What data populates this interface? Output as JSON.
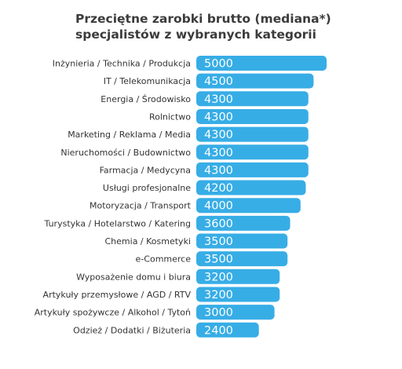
{
  "chart_data": {
    "type": "bar",
    "orientation": "horizontal",
    "title_lines": [
      "Przeciętne zarobki brutto (mediana*)",
      "specjalistów z wybranych kategorii"
    ],
    "categories": [
      "Inżynieria / Technika / Produkcja",
      "IT / Telekomunikacja",
      "Energia / Środowisko",
      "Rolnictwo",
      "Marketing / Reklama / Media",
      "Nieruchomości / Budownictwo",
      "Farmacja / Medycyna",
      "Usługi profesjonalne",
      "Motoryzacja / Transport",
      "Turystyka / Hotelarstwo / Katering",
      "Chemia / Kosmetyki",
      "e-Commerce",
      "Wyposażenie domu i biura",
      "Artykuły przemysłowe / AGD / RTV",
      "Artykuły spożywcze / Alkohol / Tytoń",
      "Odzież / Dodatki / Biżuteria"
    ],
    "values": [
      5000,
      4500,
      4300,
      4300,
      4300,
      4300,
      4300,
      4200,
      4000,
      3600,
      3500,
      3500,
      3200,
      3200,
      3000,
      2400
    ],
    "value_labels": [
      "5000",
      "4500",
      "4300",
      "4300",
      "4300",
      "4300",
      "4300",
      "4200",
      "4000",
      "3600",
      "3500",
      "3500",
      "3200",
      "3200",
      "3000",
      "2400"
    ],
    "bar_color": "#37ade6",
    "value_label_color": "#ffffff",
    "axes_visible": false,
    "grid": false,
    "legend": "none"
  }
}
